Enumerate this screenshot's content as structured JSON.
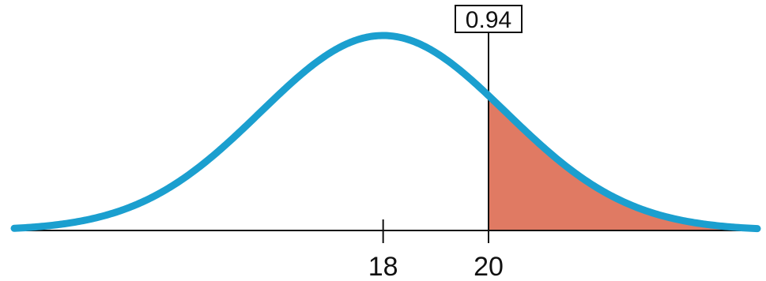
{
  "chart_data": {
    "type": "area",
    "distribution": "normal",
    "mean": 18,
    "sd": 2.33,
    "x_range": [
      11,
      25.1
    ],
    "shaded_region": {
      "from": 20,
      "to": "right-tail"
    },
    "marker": {
      "x": 20,
      "label": "0.94"
    },
    "ticks": [
      {
        "value": 18,
        "label": "18"
      },
      {
        "value": 20,
        "label": "20"
      }
    ],
    "grid": false,
    "legend": "none",
    "colors": {
      "curve": "#1b9fcf",
      "shade": "#e07a63",
      "axis": "#111111",
      "marker": "#111111"
    }
  }
}
